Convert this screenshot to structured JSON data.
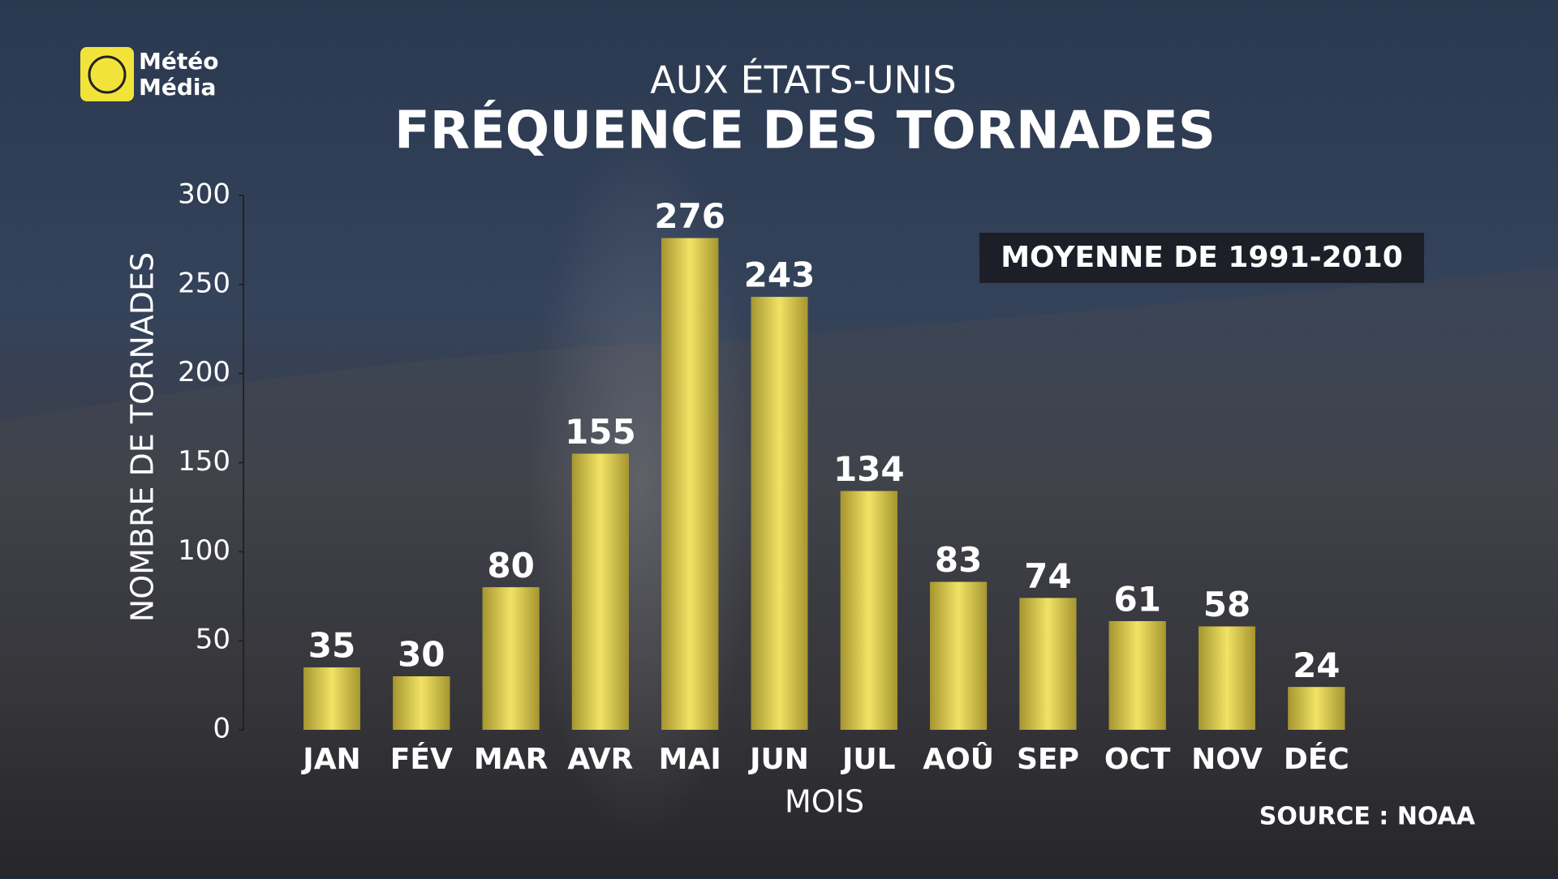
{
  "logo": {
    "line1": "Météo",
    "line2": "Média"
  },
  "chart_data": {
    "type": "bar",
    "subtitle": "AUX ÉTATS-UNIS",
    "title": "FRÉQUENCE DES TORNADES",
    "y_label": "NOMBRE DE TORNADES",
    "x_label": "MOIS",
    "annotation": "MOYENNE DE 1991-2010",
    "source": "SOURCE : NOAA",
    "categories": [
      "JAN",
      "FÉV",
      "MAR",
      "AVR",
      "MAI",
      "JUN",
      "JUL",
      "AOÛ",
      "SEP",
      "OCT",
      "NOV",
      "DÉC"
    ],
    "values": [
      35,
      30,
      80,
      155,
      276,
      243,
      134,
      83,
      74,
      61,
      58,
      24
    ],
    "color": "#e9d64e",
    "ylim": [
      0,
      300
    ],
    "yticks": [
      0,
      50,
      100,
      150,
      200,
      250,
      300
    ],
    "grid": false
  }
}
